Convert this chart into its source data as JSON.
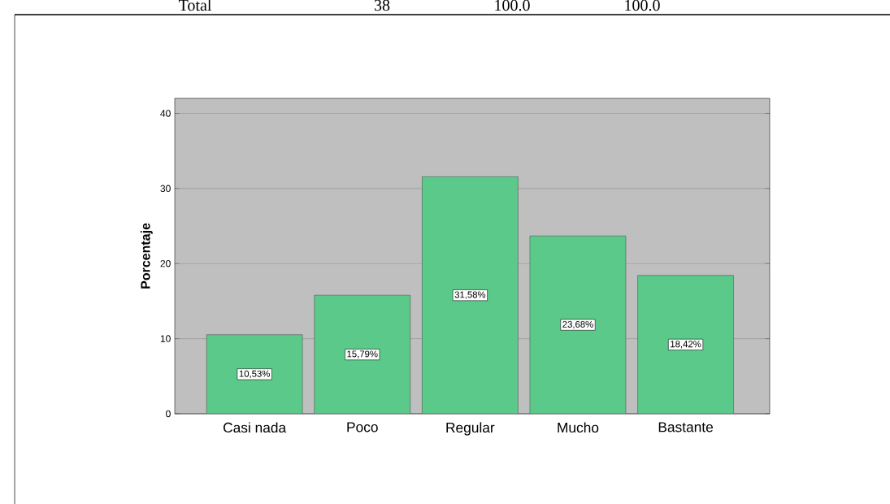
{
  "chart_data": {
    "type": "bar",
    "categories": [
      "Casi nada",
      "Poco",
      "Regular",
      "Mucho",
      "Bastante"
    ],
    "values": [
      10.53,
      15.79,
      31.58,
      23.68,
      18.42
    ],
    "value_labels": [
      "10,53%",
      "15,79%",
      "31,58%",
      "23,68%",
      "18,42%"
    ],
    "color": "#5bc98a",
    "ylabel": "Porcentaje",
    "ylim": [
      0,
      42
    ],
    "yticks": [
      0,
      10,
      20,
      30,
      40
    ],
    "grid": "y",
    "annotations": [
      "Total",
      "38",
      "100.0",
      "100.0"
    ]
  }
}
